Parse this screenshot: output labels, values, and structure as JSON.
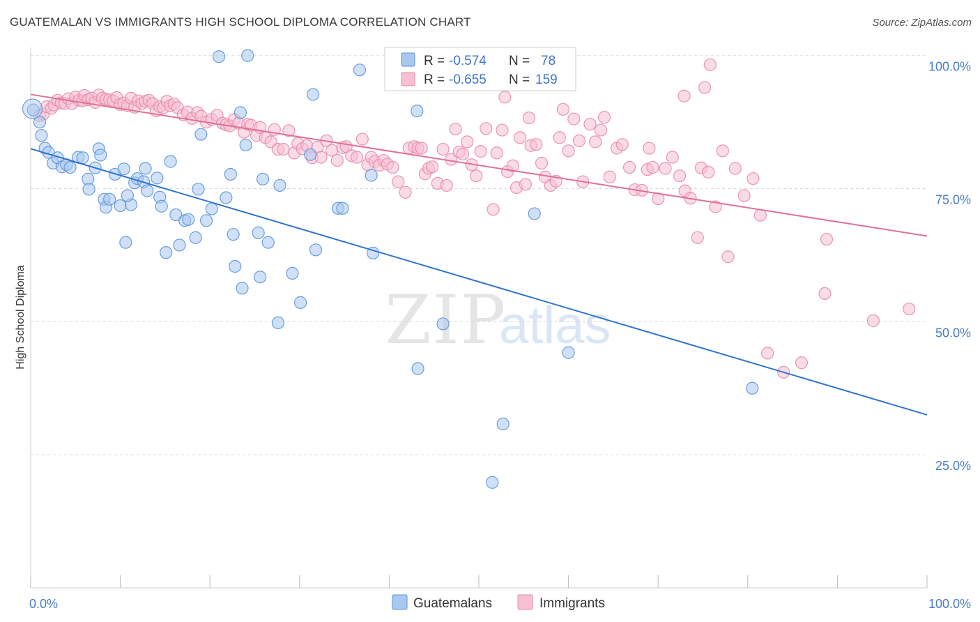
{
  "title": "GUATEMALAN VS IMMIGRANTS HIGH SCHOOL DIPLOMA CORRELATION CHART",
  "source": "Source: ZipAtlas.com",
  "colors": {
    "blue_fill": "#a9c8f0",
    "blue_stroke": "#5b93d9",
    "blue_line": "#2f74d0",
    "pink_fill": "#f6c0d2",
    "pink_stroke": "#e88aaa",
    "pink_line": "#e0709a",
    "grid": "#d9d9d9",
    "tick_label": "#4a7cc9"
  },
  "legend": {
    "r_label": "R =",
    "n_label": "N =",
    "series": [
      {
        "r": "-0.574",
        "n": "78"
      },
      {
        "r": "-0.655",
        "n": "159"
      }
    ]
  },
  "bottom_legend": [
    "Guatemalans",
    "Immigrants"
  ],
  "chart_data": {
    "type": "scatter",
    "title": "GUATEMALAN VS IMMIGRANTS HIGH SCHOOL DIPLOMA CORRELATION CHART",
    "xlabel": "",
    "ylabel": "High School Diploma",
    "xlim": [
      0,
      100
    ],
    "ylim": [
      0,
      102
    ],
    "x_tick_labels": [
      "0.0%",
      "100.0%"
    ],
    "y_ticks": [
      25,
      50,
      75,
      100
    ],
    "y_tick_labels": [
      "25.0%",
      "50.0%",
      "75.0%",
      "100.0%"
    ],
    "grid": true,
    "legend_position": "top-center",
    "series": [
      {
        "name": "Guatemalans",
        "r": -0.574,
        "n": 78,
        "trend": {
          "x": [
            0,
            100
          ],
          "y": [
            82.5,
            32.5
          ]
        },
        "points": [
          [
            0.3,
            89.8
          ],
          [
            1.0,
            87.5
          ],
          [
            1.2,
            85.0
          ],
          [
            1.6,
            82.6
          ],
          [
            2.0,
            81.8
          ],
          [
            2.5,
            79.8
          ],
          [
            3.0,
            80.8
          ],
          [
            3.5,
            79.1
          ],
          [
            4.0,
            79.5
          ],
          [
            4.4,
            79.0
          ],
          [
            5.3,
            80.9
          ],
          [
            5.8,
            80.8
          ],
          [
            6.4,
            76.8
          ],
          [
            6.5,
            74.9
          ],
          [
            7.2,
            78.9
          ],
          [
            7.6,
            82.5
          ],
          [
            7.8,
            81.3
          ],
          [
            8.2,
            73.0
          ],
          [
            8.4,
            71.5
          ],
          [
            8.8,
            73.0
          ],
          [
            9.4,
            77.7
          ],
          [
            10.0,
            71.8
          ],
          [
            10.4,
            78.7
          ],
          [
            10.6,
            64.9
          ],
          [
            11.2,
            72.0
          ],
          [
            11.6,
            76.1
          ],
          [
            11.9,
            76.9
          ],
          [
            12.6,
            76.3
          ],
          [
            12.8,
            78.8
          ],
          [
            13.0,
            74.6
          ],
          [
            14.1,
            77.0
          ],
          [
            14.4,
            73.4
          ],
          [
            14.6,
            71.7
          ],
          [
            15.1,
            63.0
          ],
          [
            15.6,
            80.1
          ],
          [
            16.2,
            70.1
          ],
          [
            16.6,
            64.4
          ],
          [
            17.2,
            69.0
          ],
          [
            17.6,
            69.2
          ],
          [
            18.4,
            65.8
          ],
          [
            18.7,
            74.9
          ],
          [
            19.0,
            85.2
          ],
          [
            19.6,
            69.0
          ],
          [
            20.2,
            71.2
          ],
          [
            21.0,
            99.8
          ],
          [
            21.8,
            73.3
          ],
          [
            22.3,
            77.7
          ],
          [
            22.6,
            66.4
          ],
          [
            22.8,
            60.4
          ],
          [
            23.4,
            89.3
          ],
          [
            23.6,
            56.3
          ],
          [
            24.0,
            83.2
          ],
          [
            25.4,
            66.7
          ],
          [
            25.6,
            58.4
          ],
          [
            25.9,
            76.8
          ],
          [
            26.5,
            64.9
          ],
          [
            27.6,
            49.8
          ],
          [
            27.8,
            75.6
          ],
          [
            29.2,
            59.1
          ],
          [
            30.1,
            53.6
          ],
          [
            31.2,
            81.4
          ],
          [
            31.5,
            92.7
          ],
          [
            31.8,
            63.5
          ],
          [
            34.3,
            71.3
          ],
          [
            34.8,
            71.3
          ],
          [
            36.7,
            97.3
          ],
          [
            38.0,
            77.5
          ],
          [
            38.2,
            62.9
          ],
          [
            43.1,
            89.6
          ],
          [
            43.2,
            41.2
          ],
          [
            46.0,
            49.6
          ],
          [
            51.5,
            19.8
          ],
          [
            52.7,
            30.8
          ],
          [
            56.2,
            70.3
          ],
          [
            60.0,
            44.2
          ],
          [
            80.5,
            37.5
          ],
          [
            24.2,
            100.0
          ],
          [
            10.8,
            73.7
          ]
        ]
      },
      {
        "name": "Immigrants",
        "r": -0.655,
        "n": 159,
        "trend": {
          "x": [
            0,
            100
          ],
          "y": [
            92.7,
            66.1
          ]
        },
        "points": [
          [
            1.0,
            88.7
          ],
          [
            1.4,
            89.0
          ],
          [
            1.8,
            90.4
          ],
          [
            2.3,
            90.1
          ],
          [
            2.6,
            90.7
          ],
          [
            3.0,
            91.6
          ],
          [
            3.4,
            91.1
          ],
          [
            3.8,
            91.0
          ],
          [
            4.2,
            91.9
          ],
          [
            4.6,
            91.0
          ],
          [
            5.0,
            92.2
          ],
          [
            5.4,
            91.6
          ],
          [
            5.8,
            91.5
          ],
          [
            6.0,
            92.5
          ],
          [
            6.4,
            91.7
          ],
          [
            6.8,
            92.0
          ],
          [
            7.2,
            91.2
          ],
          [
            7.6,
            92.6
          ],
          [
            8.0,
            92.0
          ],
          [
            8.4,
            91.8
          ],
          [
            8.8,
            91.7
          ],
          [
            9.2,
            91.5
          ],
          [
            9.6,
            92.1
          ],
          [
            10.0,
            90.8
          ],
          [
            10.4,
            91.1
          ],
          [
            10.8,
            90.6
          ],
          [
            11.2,
            92.0
          ],
          [
            11.6,
            90.3
          ],
          [
            12.0,
            91.5
          ],
          [
            12.4,
            91.0
          ],
          [
            12.8,
            91.4
          ],
          [
            13.2,
            91.6
          ],
          [
            13.6,
            91.0
          ],
          [
            14.0,
            89.6
          ],
          [
            14.4,
            90.4
          ],
          [
            14.8,
            90.2
          ],
          [
            15.2,
            91.4
          ],
          [
            15.6,
            90.6
          ],
          [
            16.0,
            90.9
          ],
          [
            16.4,
            90.2
          ],
          [
            17.0,
            88.9
          ],
          [
            17.5,
            89.4
          ],
          [
            18.0,
            88.2
          ],
          [
            18.6,
            89.3
          ],
          [
            19.0,
            88.6
          ],
          [
            19.6,
            87.5
          ],
          [
            20.2,
            88.0
          ],
          [
            20.8,
            88.8
          ],
          [
            21.4,
            87.3
          ],
          [
            21.8,
            87.0
          ],
          [
            22.2,
            86.8
          ],
          [
            22.7,
            88.0
          ],
          [
            23.2,
            87.3
          ],
          [
            23.8,
            85.6
          ],
          [
            24.2,
            87.1
          ],
          [
            24.6,
            86.9
          ],
          [
            25.2,
            85.0
          ],
          [
            25.6,
            86.5
          ],
          [
            26.2,
            84.6
          ],
          [
            26.8,
            83.8
          ],
          [
            27.2,
            86.1
          ],
          [
            27.6,
            82.4
          ],
          [
            28.2,
            82.4
          ],
          [
            28.8,
            85.9
          ],
          [
            29.4,
            81.7
          ],
          [
            29.8,
            83.5
          ],
          [
            30.3,
            82.5
          ],
          [
            30.8,
            83.1
          ],
          [
            31.4,
            80.8
          ],
          [
            32.0,
            82.8
          ],
          [
            32.4,
            80.9
          ],
          [
            33.0,
            84.0
          ],
          [
            33.6,
            82.2
          ],
          [
            34.2,
            80.3
          ],
          [
            34.8,
            82.7
          ],
          [
            35.2,
            82.9
          ],
          [
            35.8,
            81.2
          ],
          [
            36.4,
            80.9
          ],
          [
            37.0,
            84.3
          ],
          [
            37.6,
            79.5
          ],
          [
            38.0,
            80.9
          ],
          [
            38.4,
            80.1
          ],
          [
            38.9,
            79.4
          ],
          [
            39.4,
            80.3
          ],
          [
            39.8,
            79.6
          ],
          [
            40.4,
            79.0
          ],
          [
            41.0,
            76.3
          ],
          [
            41.8,
            74.3
          ],
          [
            42.2,
            82.6
          ],
          [
            42.8,
            82.9
          ],
          [
            43.2,
            82.6
          ],
          [
            43.6,
            82.6
          ],
          [
            44.0,
            77.8
          ],
          [
            44.4,
            78.8
          ],
          [
            44.8,
            79.1
          ],
          [
            45.4,
            76.0
          ],
          [
            46.0,
            82.4
          ],
          [
            46.4,
            75.6
          ],
          [
            46.9,
            80.5
          ],
          [
            47.4,
            86.2
          ],
          [
            47.8,
            81.9
          ],
          [
            48.2,
            81.5
          ],
          [
            48.7,
            83.8
          ],
          [
            49.2,
            79.5
          ],
          [
            49.7,
            77.4
          ],
          [
            50.2,
            82.0
          ],
          [
            50.8,
            86.3
          ],
          [
            51.6,
            71.1
          ],
          [
            52.0,
            81.7
          ],
          [
            52.6,
            86.0
          ],
          [
            53.2,
            78.2
          ],
          [
            53.8,
            79.3
          ],
          [
            54.2,
            75.2
          ],
          [
            54.6,
            84.6
          ],
          [
            55.2,
            75.8
          ],
          [
            55.8,
            83.1
          ],
          [
            56.4,
            83.3
          ],
          [
            57.0,
            79.8
          ],
          [
            57.4,
            77.2
          ],
          [
            58.0,
            75.6
          ],
          [
            58.6,
            76.4
          ],
          [
            59.0,
            84.6
          ],
          [
            59.4,
            89.9
          ],
          [
            60.0,
            82.1
          ],
          [
            60.6,
            88.1
          ],
          [
            61.2,
            84.0
          ],
          [
            61.6,
            76.3
          ],
          [
            62.4,
            87.1
          ],
          [
            63.0,
            83.8
          ],
          [
            63.6,
            86.0
          ],
          [
            64.0,
            88.4
          ],
          [
            64.6,
            77.2
          ],
          [
            65.4,
            82.6
          ],
          [
            66.0,
            83.3
          ],
          [
            66.8,
            79.0
          ],
          [
            67.4,
            74.8
          ],
          [
            68.2,
            74.7
          ],
          [
            68.8,
            78.6
          ],
          [
            69.4,
            79.0
          ],
          [
            70.0,
            73.1
          ],
          [
            70.8,
            78.8
          ],
          [
            71.6,
            80.9
          ],
          [
            72.4,
            77.4
          ],
          [
            73.0,
            74.6
          ],
          [
            73.6,
            73.2
          ],
          [
            74.4,
            65.8
          ],
          [
            74.8,
            78.9
          ],
          [
            75.6,
            78.1
          ],
          [
            76.4,
            71.6
          ],
          [
            77.2,
            82.1
          ],
          [
            77.8,
            62.2
          ],
          [
            78.6,
            78.8
          ],
          [
            79.6,
            73.7
          ],
          [
            80.6,
            76.9
          ],
          [
            81.4,
            70.0
          ],
          [
            82.2,
            44.1
          ],
          [
            84.0,
            40.5
          ],
          [
            86.0,
            42.3
          ],
          [
            88.6,
            55.3
          ],
          [
            94.0,
            50.2
          ],
          [
            55.6,
            88.3
          ],
          [
            52.9,
            92.2
          ],
          [
            72.9,
            92.4
          ],
          [
            75.2,
            94.0
          ],
          [
            75.8,
            98.3
          ],
          [
            69.0,
            82.6
          ],
          [
            59.2,
            96.0
          ],
          [
            88.8,
            65.5
          ],
          [
            98.0,
            52.4
          ]
        ]
      }
    ]
  }
}
